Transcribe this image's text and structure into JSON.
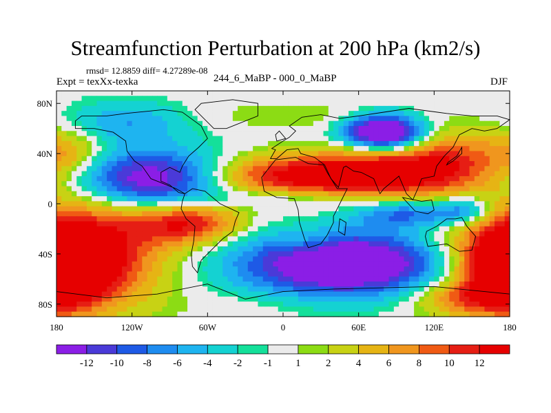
{
  "chart_data": {
    "type": "heatmap",
    "title": "Streamfunction Perturbation at 200 hPa (km2/s)",
    "stats_label": "rmsd= 12.8859 diff= 4.27289e-08",
    "left_label": "Expt = texXx-texka",
    "center_label": "244_6_MaBP - 000_0_MaBP",
    "right_label": "DJF",
    "xlabel": "",
    "ylabel": "",
    "xlim": [
      -180,
      180
    ],
    "ylim": [
      -90,
      90
    ],
    "x_ticks": [
      {
        "value": -180,
        "label": "180"
      },
      {
        "value": -120,
        "label": "120W"
      },
      {
        "value": -60,
        "label": "60W"
      },
      {
        "value": 0,
        "label": "0"
      },
      {
        "value": 60,
        "label": "60E"
      },
      {
        "value": 120,
        "label": "120E"
      },
      {
        "value": 180,
        "label": "180"
      }
    ],
    "y_ticks": [
      {
        "value": 80,
        "label": "80N"
      },
      {
        "value": 40,
        "label": "40N"
      },
      {
        "value": 0,
        "label": "0"
      },
      {
        "value": -40,
        "label": "40S"
      },
      {
        "value": -80,
        "label": "80S"
      }
    ],
    "contour_levels": [
      -12,
      -10,
      -8,
      -6,
      -4,
      -2,
      -1,
      1,
      2,
      4,
      6,
      8,
      10,
      12
    ],
    "level_labels": [
      "-12",
      "-10",
      "-8",
      "-6",
      "-4",
      "-2",
      "-1",
      "1",
      "2",
      "4",
      "6",
      "8",
      "10",
      "12"
    ],
    "palette": [
      "#8b1ee6",
      "#4a3ad8",
      "#1e5ae6",
      "#1e8cf0",
      "#1eb4f0",
      "#14d2d2",
      "#14e09a",
      "#ebebeb",
      "#8cdc14",
      "#c8d214",
      "#e6b414",
      "#f0961e",
      "#f05a14",
      "#e61e14",
      "#e60000"
    ],
    "field_features": [
      {
        "lon": -100,
        "lat": 20,
        "amp": -17,
        "slon": 45,
        "slat": 16
      },
      {
        "lon": -5,
        "lat": 22,
        "amp": 13,
        "slon": 55,
        "slat": 12
      },
      {
        "lon": 80,
        "lat": 25,
        "amp": 12,
        "slon": 40,
        "slat": 14
      },
      {
        "lon": 135,
        "lat": 35,
        "amp": 8,
        "slon": 30,
        "slat": 18
      },
      {
        "lon": 80,
        "lat": 57,
        "amp": -20,
        "slon": 22,
        "slat": 10
      },
      {
        "lon": -125,
        "lat": 65,
        "amp": -6,
        "slon": 35,
        "slat": 12
      },
      {
        "lon": 10,
        "lat": 70,
        "amp": 2,
        "slon": 60,
        "slat": 8
      },
      {
        "lon": -170,
        "lat": 40,
        "amp": 6,
        "slon": 20,
        "slat": 15
      },
      {
        "lon": -165,
        "lat": -40,
        "amp": 17,
        "slon": 45,
        "slat": 30
      },
      {
        "lon": -75,
        "lat": -15,
        "amp": 12,
        "slon": 30,
        "slat": 12
      },
      {
        "lon": 50,
        "lat": -48,
        "amp": -19,
        "slon": 60,
        "slat": 18
      },
      {
        "lon": 20,
        "lat": -30,
        "amp": 3,
        "slon": 15,
        "slat": 10
      },
      {
        "lon": 100,
        "lat": -8,
        "amp": -9,
        "slon": 30,
        "slat": 8
      },
      {
        "lon": 145,
        "lat": -5,
        "amp": -8,
        "slon": 15,
        "slat": 8
      },
      {
        "lon": 180,
        "lat": -55,
        "amp": 12,
        "slon": 25,
        "slat": 20
      },
      {
        "lon": 140,
        "lat": -75,
        "amp": 6,
        "slon": 30,
        "slat": 10
      },
      {
        "lon": -30,
        "lat": -80,
        "amp": 1,
        "slon": 40,
        "slat": 8
      },
      {
        "lon": 0,
        "lat": 5,
        "amp": -3,
        "slon": 40,
        "slat": 5
      }
    ]
  }
}
